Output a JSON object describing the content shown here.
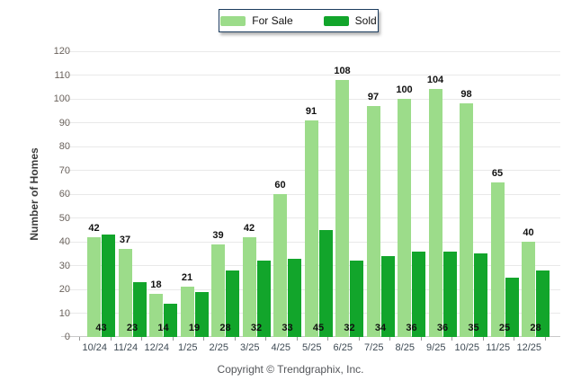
{
  "legend": {
    "items": [
      {
        "label": "For Sale"
      },
      {
        "label": "Sold"
      }
    ]
  },
  "chart_data": {
    "type": "bar",
    "title": "",
    "categories": [
      "10/24",
      "11/24",
      "12/24",
      "1/25",
      "2/25",
      "3/25",
      "4/25",
      "5/25",
      "6/25",
      "7/25",
      "8/25",
      "9/25",
      "10/25",
      "11/25",
      "12/25"
    ],
    "series": [
      {
        "name": "For Sale",
        "color": "#9cdc8a",
        "values": [
          42,
          37,
          18,
          21,
          39,
          42,
          60,
          91,
          108,
          97,
          100,
          104,
          98,
          65,
          40
        ],
        "label_position": "above-bar"
      },
      {
        "name": "Sold",
        "color": "#12a52b",
        "values": [
          43,
          23,
          14,
          19,
          28,
          32,
          33,
          45,
          32,
          34,
          36,
          36,
          35,
          25,
          28
        ],
        "label_position": "inside-bottom"
      }
    ],
    "xlabel": "",
    "ylabel": "Number of Homes",
    "ylim": [
      0,
      120
    ],
    "ytick_step": 10,
    "ytick_labels": [
      "0",
      "10",
      "20",
      "30",
      "40",
      "50",
      "60",
      "70",
      "80",
      "90",
      "100",
      "110",
      "120"
    ],
    "grid": "horizontal",
    "legend_position": "top-center"
  },
  "footer": {
    "copyright": "Copyright © Trendgraphix, Inc."
  }
}
